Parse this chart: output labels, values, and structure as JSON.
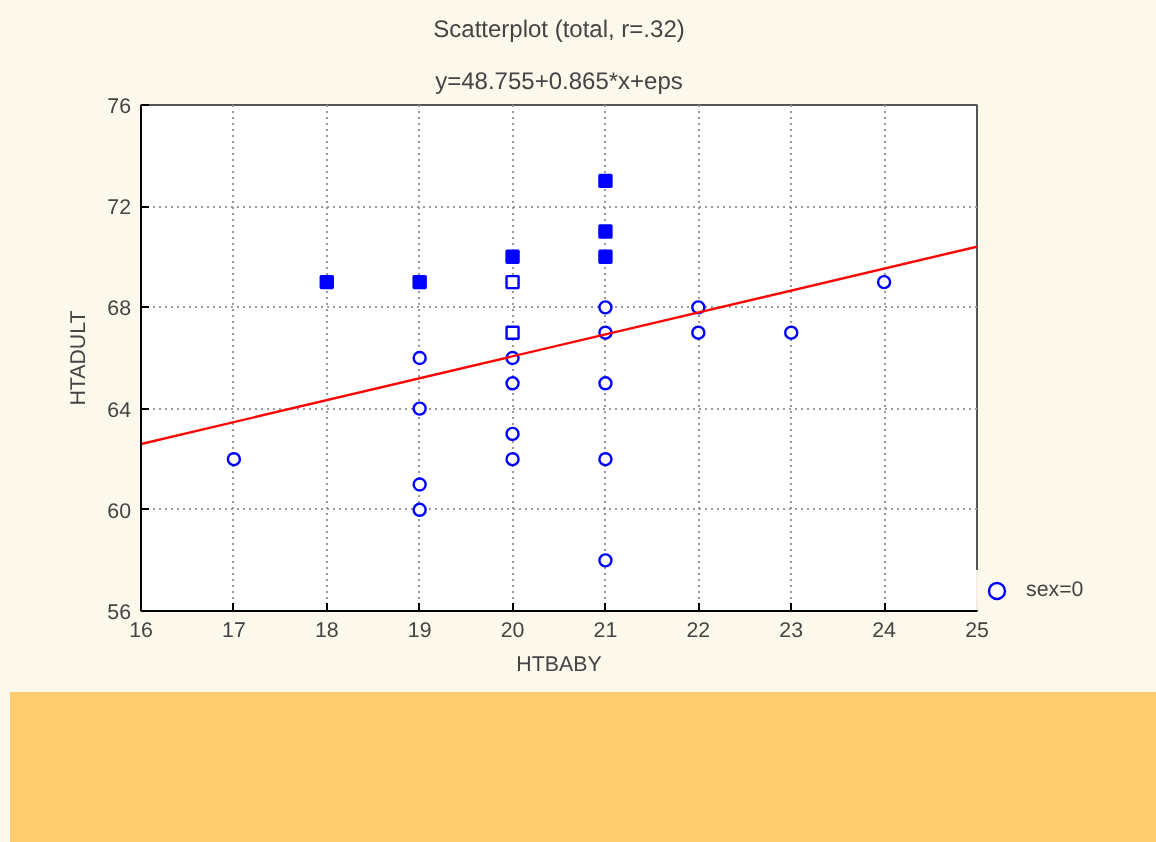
{
  "chart_data": {
    "type": "scatter",
    "title": "Scatterplot (total, r=.32)",
    "subtitle": "y=48.755+0.865*x+eps",
    "xlabel": "HTBABY",
    "ylabel": "HTADULT",
    "xlim": [
      16,
      25
    ],
    "xticks": [
      16,
      17,
      18,
      19,
      20,
      21,
      22,
      23,
      24,
      25
    ],
    "ylim": [
      56,
      76
    ],
    "yticks": [
      56,
      60,
      64,
      68,
      72,
      76
    ],
    "grid": true,
    "legend": "right",
    "series": [
      {
        "name": "sex=0",
        "color": "#0000ff",
        "marker": "circle",
        "x": [
          17,
          19,
          19,
          19,
          19,
          20,
          20,
          20,
          20,
          21,
          21,
          21,
          21,
          21,
          22,
          22,
          23,
          24
        ],
        "values": [
          62,
          66,
          64,
          61,
          60,
          66,
          65,
          63,
          62,
          68,
          67,
          65,
          62,
          58,
          68,
          67,
          67,
          69
        ]
      },
      {
        "color": "#0000ff",
        "marker": "square",
        "x": [
          18,
          19,
          20,
          21,
          21,
          21
        ],
        "values": [
          69,
          69,
          70,
          73,
          71,
          70
        ]
      },
      {
        "color": "#0000ff",
        "marker": "square_open",
        "x": [
          20,
          20
        ],
        "values": [
          69,
          67
        ]
      },
      {
        "type": "line",
        "color": "#ff0000",
        "x": [
          16,
          25
        ],
        "values": [
          62.6,
          70.4
        ]
      }
    ]
  }
}
